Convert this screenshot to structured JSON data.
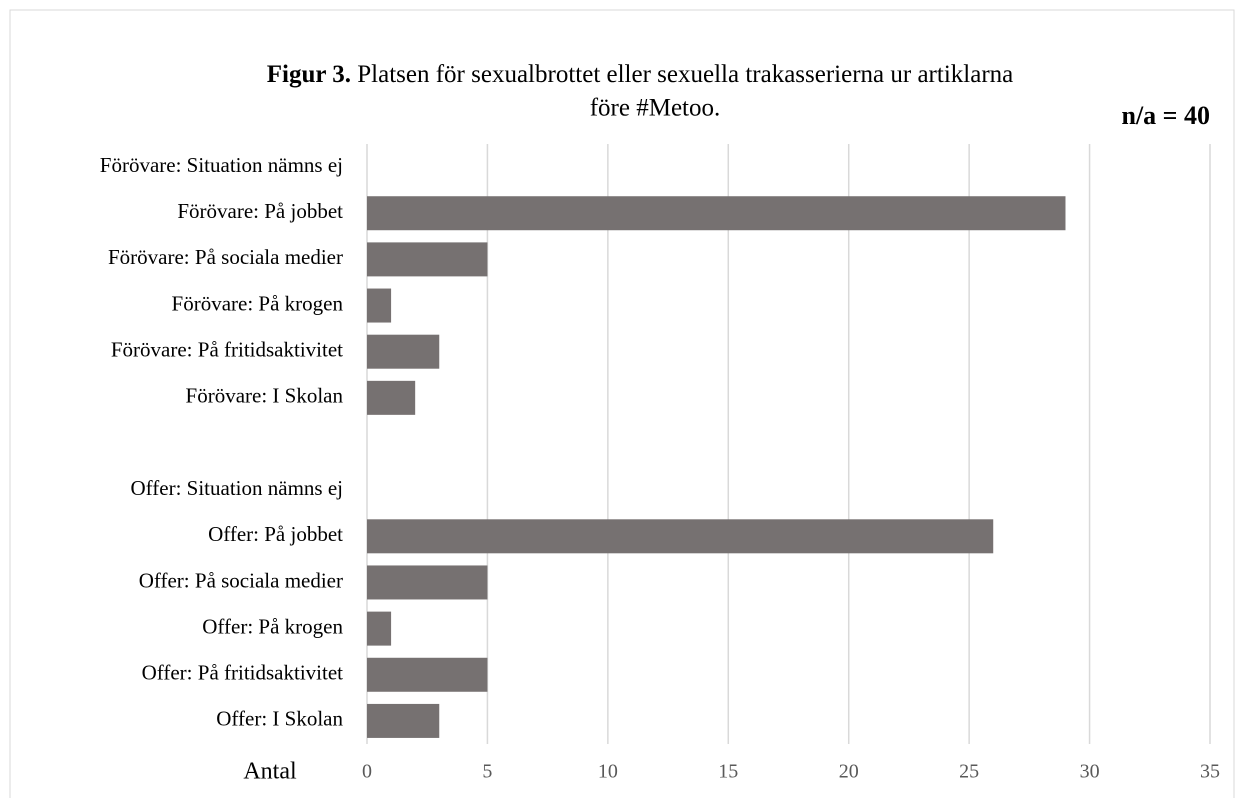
{
  "chart_data": {
    "type": "barh",
    "title_prefix": "Figur 3.",
    "title_lines": [
      "Platsen för sexualbrottet eller sexuella trakasserierna ur artiklarna",
      "före #Metoo."
    ],
    "annotation": "n/a = 40",
    "xlabel": "Antal",
    "categories": [
      "Förövare: Situation nämns ej",
      "Förövare: På jobbet",
      "Förövare: På sociala medier",
      "Förövare: På krogen",
      "Förövare: På fritidsaktivitet",
      "Förövare: I Skolan",
      null,
      "Offer: Situation nämns ej",
      "Offer: På jobbet",
      "Offer: På sociala medier",
      "Offer: På krogen",
      "Offer: På fritidsaktivitet",
      "Offer: I Skolan"
    ],
    "values": [
      0,
      29,
      5,
      1,
      3,
      2,
      null,
      0,
      26,
      5,
      1,
      5,
      3
    ],
    "color": "#767171",
    "xlim": [
      0,
      35
    ],
    "xticks": [
      0,
      5,
      10,
      15,
      20,
      25,
      30,
      35
    ],
    "grid": true
  }
}
